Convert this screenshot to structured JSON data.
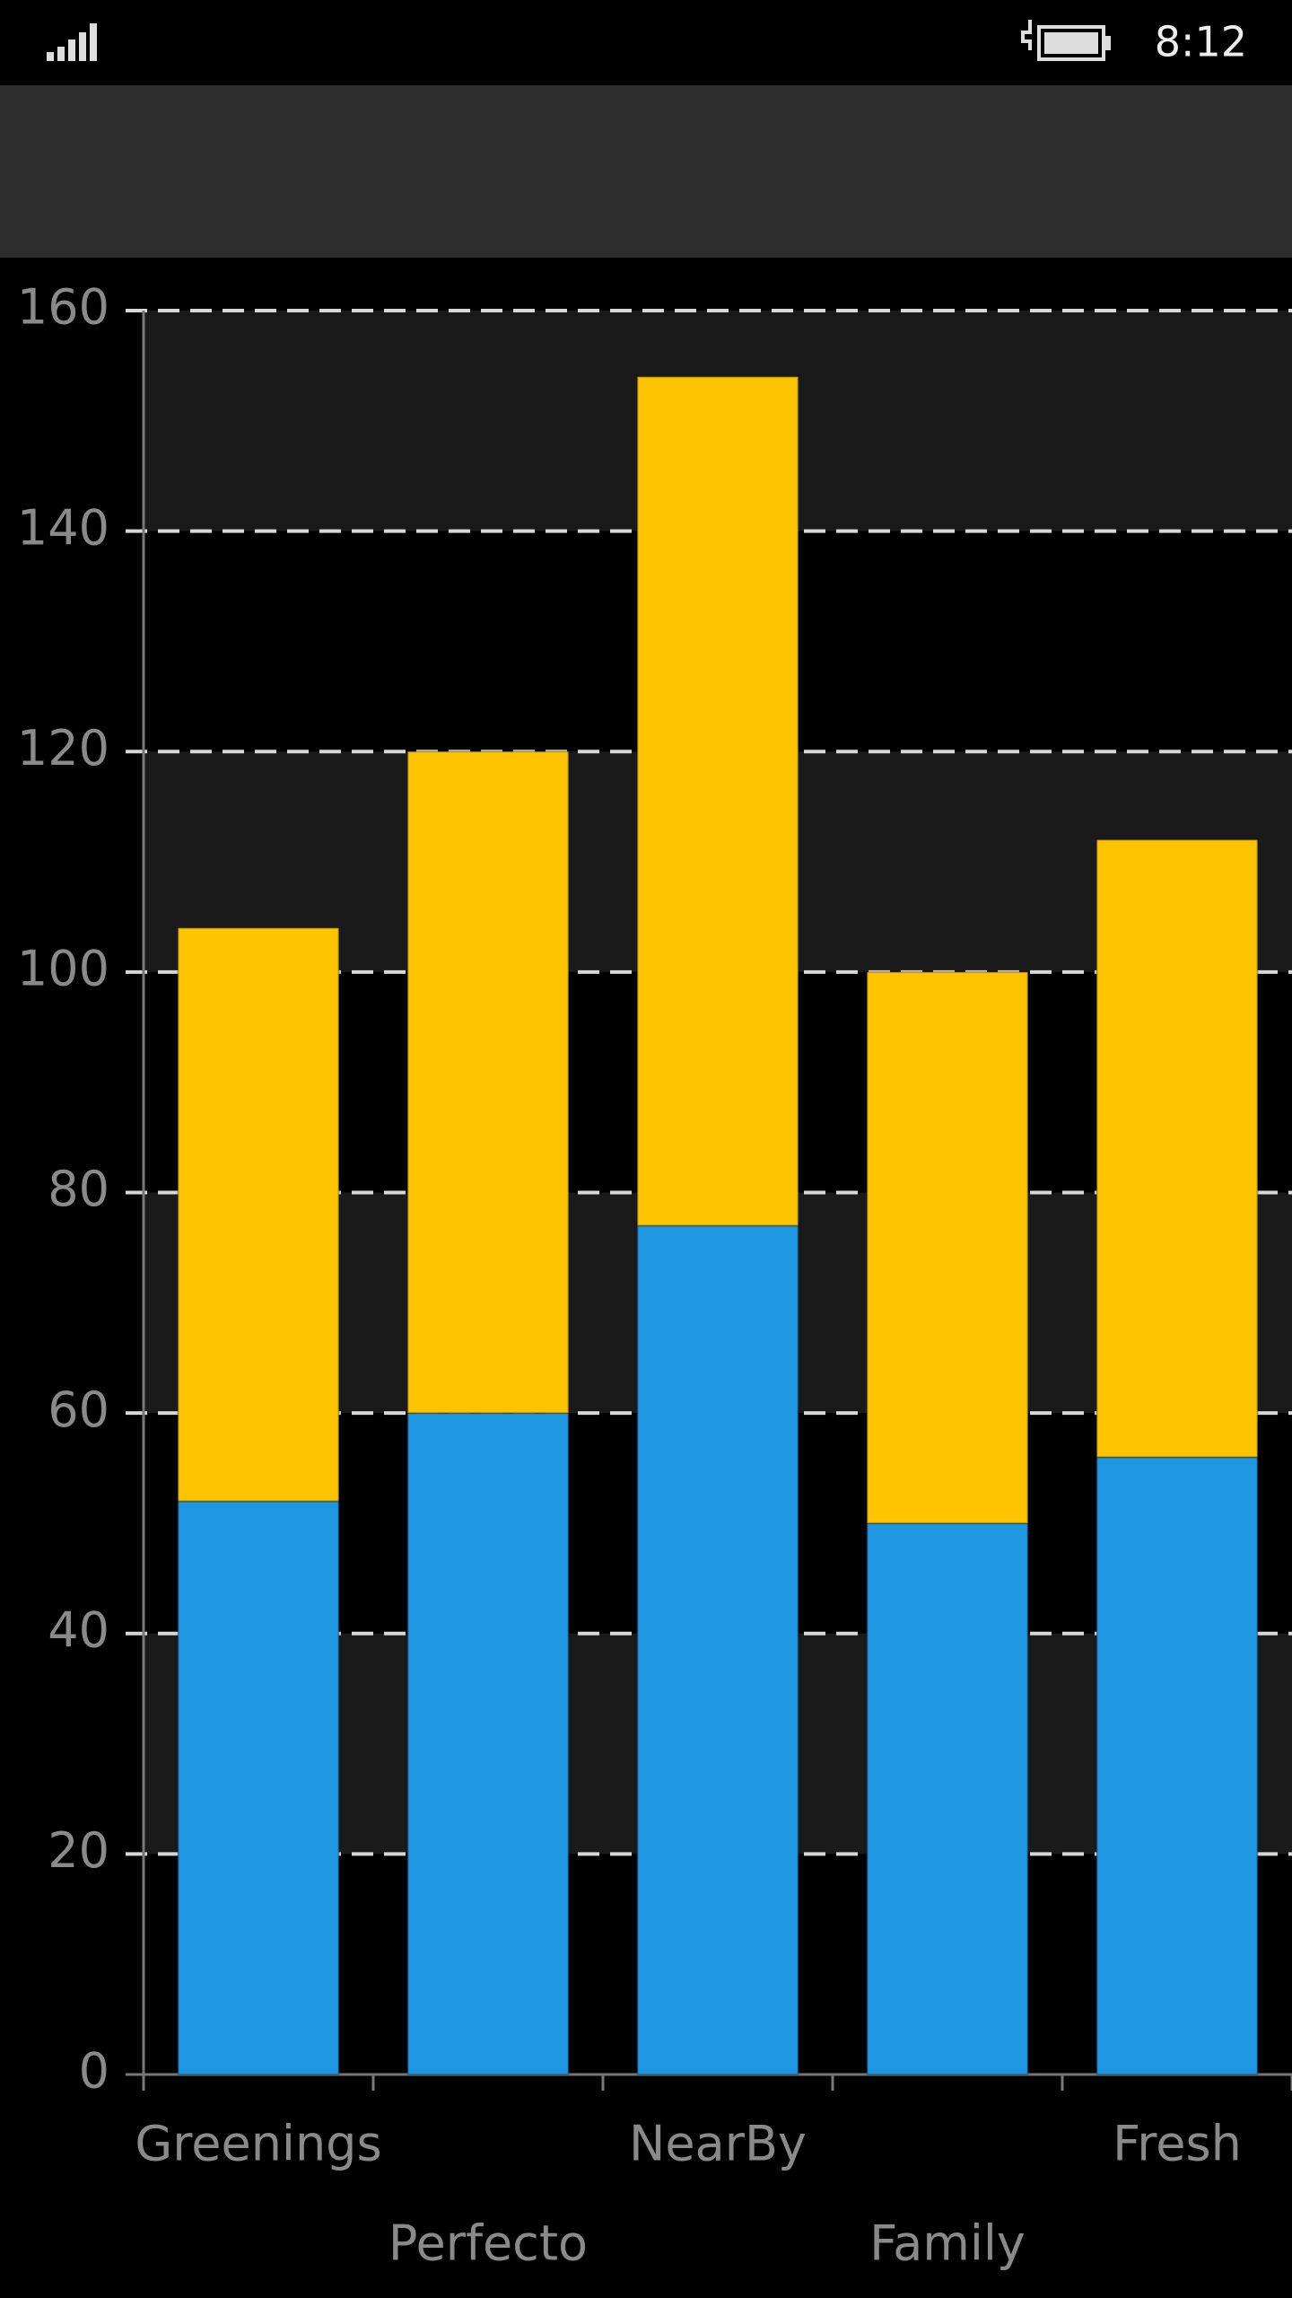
{
  "status_bar": {
    "time": "8:12"
  },
  "chart_data": {
    "type": "bar",
    "stacked": true,
    "categories": [
      "Greenings",
      "Perfecto",
      "NearBy",
      "Family",
      "Fresh"
    ],
    "series": [
      {
        "color": "#1e96e0",
        "values": [
          52,
          60,
          77,
          50,
          56
        ]
      },
      {
        "color": "#ffc400",
        "values": [
          52,
          60,
          77,
          50,
          56
        ]
      }
    ],
    "ylim": [
      0,
      160
    ],
    "yticks": [
      0,
      20,
      40,
      60,
      80,
      100,
      120,
      140,
      160
    ],
    "grid": true
  }
}
